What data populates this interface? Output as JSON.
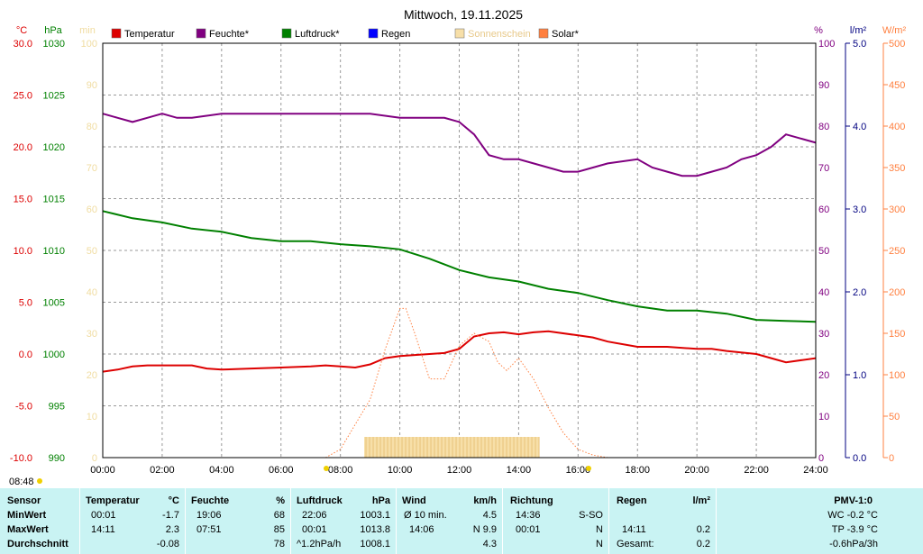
{
  "title": "Mittwoch, 19.11.2025",
  "sunrise_label": "08:48",
  "legend": [
    {
      "label": "Temperatur",
      "color": "#dd0000"
    },
    {
      "label": "Feuchte*",
      "color": "#800080"
    },
    {
      "label": "Luftdruck*",
      "color": "#008000"
    },
    {
      "label": "Regen",
      "color": "#0000ff"
    },
    {
      "label": "Sonnenschein",
      "color": "#f7dfa8"
    },
    {
      "label": "Solar*",
      "color": "#ff8040"
    }
  ],
  "axes": {
    "temp": {
      "unit": "°C",
      "ticks": [
        "30.0",
        "25.0",
        "20.0",
        "15.0",
        "10.0",
        "5.0",
        "0.0",
        "-5.0",
        "-10.0"
      ],
      "color": "#dd0000"
    },
    "pressure": {
      "unit": "hPa",
      "ticks": [
        "1030",
        "1025",
        "1020",
        "1015",
        "1010",
        "1005",
        "1000",
        "995",
        "990"
      ],
      "color": "#008000"
    },
    "sun_min": {
      "unit": "min",
      "ticks": [
        "100",
        "90",
        "80",
        "70",
        "60",
        "50",
        "40",
        "30",
        "20",
        "10",
        "0"
      ],
      "color": "#f0dca0"
    },
    "humidity": {
      "unit": "%",
      "ticks": [
        "100",
        "90",
        "80",
        "70",
        "60",
        "50",
        "40",
        "30",
        "20",
        "10",
        "0"
      ],
      "color": "#800080"
    },
    "rain": {
      "unit": "l/m²",
      "ticks": [
        "5.0",
        "4.0",
        "3.0",
        "2.0",
        "1.0",
        "0.0"
      ],
      "color": "#000080"
    },
    "solar": {
      "unit": "W/m²",
      "ticks": [
        "500",
        "450",
        "400",
        "350",
        "300",
        "250",
        "200",
        "150",
        "100",
        "50",
        "0"
      ],
      "color": "#ff8040"
    },
    "time_ticks": [
      "00:00",
      "02:00",
      "04:00",
      "06:00",
      "08:00",
      "10:00",
      "12:00",
      "14:00",
      "16:00",
      "18:00",
      "20:00",
      "22:00",
      "24:00"
    ]
  },
  "chart_data": {
    "type": "line",
    "title": "Mittwoch, 19.11.2025",
    "x_unit": "hours",
    "xlim": [
      0,
      24
    ],
    "series": [
      {
        "name": "Temperatur",
        "axis": "temp",
        "ylim": [
          -10,
          30
        ],
        "color": "#dd0000",
        "x": [
          0,
          0.5,
          1,
          1.5,
          2,
          3,
          3.5,
          4,
          5,
          6,
          7,
          7.5,
          8,
          8.5,
          9,
          9.5,
          10,
          11,
          11.5,
          12,
          12.5,
          13,
          13.5,
          14,
          14.5,
          15,
          16,
          16.5,
          17,
          18,
          19,
          20,
          20.5,
          21,
          22,
          22.5,
          23,
          24
        ],
        "y": [
          -1.7,
          -1.5,
          -1.2,
          -1.1,
          -1.1,
          -1.1,
          -1.4,
          -1.5,
          -1.4,
          -1.3,
          -1.2,
          -1.1,
          -1.2,
          -1.3,
          -1.0,
          -0.4,
          -0.2,
          0,
          0.1,
          0.5,
          1.7,
          2.0,
          2.1,
          1.9,
          2.1,
          2.2,
          1.8,
          1.6,
          1.2,
          0.7,
          0.7,
          0.5,
          0.5,
          0.3,
          0.0,
          -0.4,
          -0.8,
          -0.4
        ]
      },
      {
        "name": "Feuchte*",
        "axis": "humidity",
        "ylim": [
          0,
          100
        ],
        "color": "#800080",
        "x": [
          0,
          0.5,
          1,
          1.5,
          2,
          2.5,
          3,
          4,
          5,
          6,
          7,
          7.5,
          8,
          8.5,
          9,
          10,
          10.5,
          11,
          11.5,
          12,
          12.5,
          13,
          13.5,
          14,
          14.5,
          15,
          15.5,
          16,
          16.5,
          17,
          18,
          18.5,
          19,
          19.5,
          20,
          20.5,
          21,
          21.5,
          22,
          22.5,
          23,
          23.5,
          24
        ],
        "y": [
          83,
          82,
          81,
          82,
          83,
          82,
          82,
          83,
          83,
          83,
          83,
          83,
          83,
          83,
          83,
          82,
          82,
          82,
          82,
          81,
          78,
          73,
          72,
          72,
          71,
          70,
          69,
          69,
          70,
          71,
          72,
          70,
          69,
          68,
          68,
          69,
          70,
          72,
          73,
          75,
          78,
          77,
          76
        ]
      },
      {
        "name": "Luftdruck*",
        "axis": "pressure",
        "ylim": [
          990,
          1030
        ],
        "color": "#008000",
        "x": [
          0,
          1,
          2,
          3,
          4,
          5,
          6,
          7,
          8,
          9,
          10,
          11,
          12,
          13,
          14,
          15,
          16,
          17,
          18,
          19,
          20,
          21,
          22,
          23,
          24
        ],
        "y": [
          1013.8,
          1013.1,
          1012.7,
          1012.1,
          1011.8,
          1011.2,
          1010.9,
          1010.9,
          1010.6,
          1010.4,
          1010.1,
          1009.2,
          1008.1,
          1007.4,
          1007.0,
          1006.3,
          1005.9,
          1005.2,
          1004.6,
          1004.2,
          1004.2,
          1003.9,
          1003.3,
          1003.2,
          1003.1
        ]
      },
      {
        "name": "Solar*",
        "axis": "solar",
        "ylim": [
          0,
          500
        ],
        "color": "#ff8040",
        "style": "dotted",
        "x": [
          7.5,
          8,
          8.5,
          9,
          9.5,
          10,
          10.2,
          10.5,
          11,
          11.5,
          12,
          12.5,
          13,
          13.3,
          13.6,
          14,
          14.5,
          15,
          15.5,
          16,
          16.5,
          17
        ],
        "y": [
          0,
          10,
          40,
          70,
          130,
          180,
          180,
          150,
          95,
          95,
          135,
          150,
          140,
          115,
          105,
          120,
          95,
          60,
          30,
          10,
          3,
          0
        ]
      },
      {
        "name": "Regen",
        "axis": "rain",
        "ylim": [
          0,
          5
        ],
        "color": "#0000ff",
        "type": "bar",
        "x": [
          14.1
        ],
        "y": [
          0.2
        ]
      },
      {
        "name": "Sonnenschein",
        "axis": "sun_min",
        "ylim": [
          0,
          100
        ],
        "color": "#f7dfa8",
        "type": "bar",
        "x": [
          8.8,
          14.7
        ],
        "y": [
          5,
          5
        ]
      }
    ]
  },
  "stats": {
    "labels": {
      "sensor": "Sensor",
      "min": "MinWert",
      "max": "MaxWert",
      "avg": "Durchschnitt"
    },
    "temperatur": {
      "header": "Temperatur",
      "unit": "°C",
      "min_time": "00:01",
      "min_val": "-1.7",
      "max_time": "14:11",
      "max_val": "2.3",
      "avg": "-0.08"
    },
    "feuchte": {
      "header": "Feuchte",
      "unit": "%",
      "min_time": "19:06",
      "min_val": "68",
      "max_time": "07:51",
      "max_val": "85",
      "avg": "78"
    },
    "luftdruck": {
      "header": "Luftdruck",
      "unit": "hPa",
      "min_time": "22:06",
      "min_val": "1003.1",
      "max_time": "00:01",
      "max_val": "1013.8",
      "trend": "^1.2hPa/h",
      "avg": "1008.1"
    },
    "wind": {
      "header": "Wind",
      "unit": "km/h",
      "row1_label": "Ø 10 min.",
      "row1_val": "4.5",
      "row2_time": "14:06",
      "row2_val": "N 9.9",
      "avg": "4.3"
    },
    "richtung": {
      "header": "Richtung",
      "row1_time": "14:36",
      "row1_val": "S-SO",
      "row2_time": "00:01",
      "row2_val": "N",
      "avg": "N"
    },
    "regen": {
      "header": "Regen",
      "unit": "l/m²",
      "max_time": "14:11",
      "max_val": "0.2",
      "total_label": "Gesamt:",
      "total_val": "0.2"
    },
    "pmv": {
      "header": "PMV-1:0",
      "wc": "WC -0.2 °C",
      "tp": "TP -3.9 °C",
      "trend": "-0.6hPa/3h"
    }
  }
}
